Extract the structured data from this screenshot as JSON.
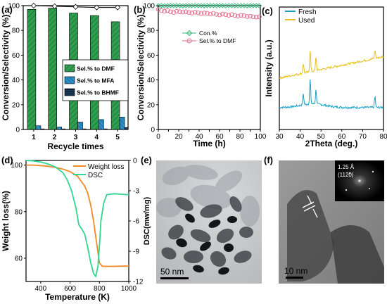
{
  "figure": {
    "panel_labels": [
      "(a)",
      "(b)",
      "(c)",
      "(d)",
      "(e)",
      "(f)"
    ]
  },
  "chart_data": [
    {
      "panel": "(a)",
      "type": "bar",
      "xlabel": "Recycle times",
      "ylabel": "Conversion/Selectivity (%)",
      "categories": [
        "1",
        "2",
        "3",
        "4",
        "5"
      ],
      "ylim": [
        0,
        100
      ],
      "yticks": [
        0,
        20,
        40,
        60,
        80,
        100
      ],
      "series": [
        {
          "name": "Sel.% to DMF",
          "values": [
            97,
            98,
            94,
            92,
            87
          ],
          "color": "#2e9e4f"
        },
        {
          "name": "Sel.% to MFA",
          "values": [
            3,
            2,
            6,
            8,
            10
          ],
          "color": "#2a8fc9"
        },
        {
          "name": "Sel.% to BHMF",
          "values": [
            0.5,
            0.5,
            0.5,
            0.5,
            1.5
          ],
          "color": "#1b3a5c"
        }
      ],
      "conversion": [
        100,
        99.5,
        99,
        98.5,
        98.5
      ],
      "legend": "right"
    },
    {
      "panel": "(b)",
      "type": "scatter",
      "xlabel": "Time (h)",
      "ylabel": "Conversion/Selectivity (%)",
      "xlim": [
        0,
        100
      ],
      "ylim": [
        0,
        100
      ],
      "xticks": [
        0,
        10,
        20,
        30,
        40,
        50,
        60,
        70,
        80,
        90,
        100
      ],
      "yticks": [
        0,
        20,
        40,
        60,
        80,
        100
      ],
      "series": [
        {
          "name": "Con.%",
          "x": [
            0,
            3,
            6,
            9,
            12,
            15,
            18,
            21,
            24,
            27,
            30,
            33,
            36,
            39,
            42,
            45,
            48,
            51,
            54,
            57,
            60,
            63,
            66,
            69,
            72,
            75,
            78,
            81,
            84,
            87,
            90,
            93,
            96,
            99
          ],
          "y": [
            100,
            100,
            99.8,
            100,
            100,
            99.9,
            100,
            100,
            99.8,
            100,
            100,
            100,
            99.9,
            100,
            100,
            99.8,
            100,
            100,
            100,
            99.9,
            100,
            100,
            99.8,
            100,
            100,
            100,
            99.9,
            100,
            100,
            99.8,
            100,
            100,
            100,
            99.9
          ],
          "color": "#2fb87a"
        },
        {
          "name": "Sel.% to DMF",
          "x": [
            0,
            3,
            6,
            9,
            12,
            15,
            18,
            21,
            24,
            27,
            30,
            33,
            36,
            39,
            42,
            45,
            48,
            51,
            54,
            57,
            60,
            63,
            66,
            69,
            72,
            75,
            78,
            81,
            84,
            87,
            90,
            93,
            96,
            99
          ],
          "y": [
            97,
            96,
            95.5,
            96,
            95,
            94.5,
            95.5,
            95,
            94.8,
            95,
            94.5,
            94,
            94.8,
            94.2,
            93.5,
            94,
            93.8,
            93.2,
            93.8,
            93,
            92.5,
            93.2,
            92.8,
            92.2,
            92.8,
            92,
            91.5,
            92.2,
            91.8,
            91.2,
            91.5,
            91,
            90.8,
            91
          ],
          "color": "#e8688a"
        }
      ],
      "legend": "center-right"
    },
    {
      "panel": "(c)",
      "type": "line",
      "xlabel": "2Theta (deg.)",
      "ylabel": "Intensity (a.u.)",
      "xlim": [
        30,
        80
      ],
      "xticks": [
        30,
        40,
        50,
        60,
        70,
        80
      ],
      "series": [
        {
          "name": "Fresh",
          "color": "#1aa0c8",
          "baseline": 0.18,
          "peaks": [
            [
              41.5,
              0.09
            ],
            [
              44.8,
              0.2
            ],
            [
              47.6,
              0.12
            ],
            [
              75.9,
              0.09
            ]
          ]
        },
        {
          "name": "Used",
          "color": "#e8c020",
          "baseline": 0.42,
          "peaks": [
            [
              41.5,
              0.08
            ],
            [
              44.8,
              0.18
            ],
            [
              47.6,
              0.11
            ],
            [
              75.9,
              0.07
            ]
          ]
        }
      ],
      "legend": "top-left"
    },
    {
      "panel": "(d)",
      "type": "line",
      "xlabel": "Temperature (K)",
      "ylabel": "Weight loss(%)",
      "ylabel_right": "DSC(mw/mg)",
      "xlim": [
        300,
        1000
      ],
      "xticks": [
        400,
        600,
        800,
        1000
      ],
      "ylim": [
        50,
        102
      ],
      "yticks": [
        60,
        80,
        100
      ],
      "ylim_right": [
        -12,
        0
      ],
      "yticks_right": [
        0,
        -3,
        -6,
        -9,
        -12
      ],
      "series": [
        {
          "name": "Weight loss",
          "axis": "left",
          "color": "#f08a24",
          "x": [
            300,
            350,
            400,
            450,
            500,
            550,
            600,
            650,
            700,
            720,
            740,
            760,
            780,
            800,
            820,
            850,
            900,
            950,
            1000
          ],
          "y": [
            100,
            100,
            99.8,
            99.5,
            99,
            98.3,
            97.2,
            95.3,
            91,
            88,
            83,
            76,
            67,
            58,
            56.5,
            56.5,
            56.5,
            56.6,
            56.6
          ]
        },
        {
          "name": "DSC",
          "axis": "right",
          "color": "#30d690",
          "x": [
            300,
            350,
            400,
            450,
            500,
            550,
            580,
            610,
            640,
            660,
            680,
            700,
            720,
            740,
            760,
            775,
            790,
            800,
            810,
            830,
            850,
            900,
            950,
            1000
          ],
          "y": [
            0,
            -0.05,
            -0.15,
            -0.35,
            -0.65,
            -1.2,
            -1.9,
            -3.0,
            -4.7,
            -6.4,
            -6.8,
            -7.3,
            -8.6,
            -10.1,
            -11.2,
            -11.5,
            -10.5,
            -8.5,
            -6.0,
            -4.2,
            -3.4,
            -3.3,
            -3.35,
            -3.4
          ]
        }
      ],
      "legend": "top-right"
    }
  ],
  "images": [
    {
      "panel": "(e)",
      "scale_label": "50 nm"
    },
    {
      "panel": "(f)",
      "scale_label": "10 nm",
      "inset_d_spacing": "1.25 Å",
      "inset_plane": "(1120)"
    }
  ]
}
